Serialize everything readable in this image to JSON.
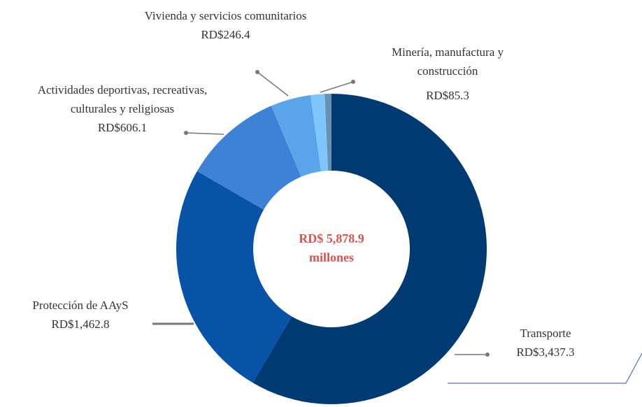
{
  "chart_data": {
    "type": "donut",
    "center_label": [
      "RD$ 5,878.9",
      "millones"
    ],
    "categories": [
      "Transporte",
      "Protección de AAyS",
      "Actividades deportivas, recreativas, culturales y religiosas",
      "Vivienda y servicios comunitarios",
      "Minería, manufactura y construcción",
      null
    ],
    "values": [
      3437.3,
      1462.8,
      606.1,
      246.4,
      85.3,
      41
    ],
    "value_labels": [
      "RD$3,437.3",
      "RD$1,462.8",
      "RD$606.1",
      "RD$246.4",
      "RD$85.3",
      null
    ],
    "colors": [
      "#003a73",
      "#0653a8",
      "#3d82d6",
      "#5aa5ea",
      "#7fc6ff",
      "#6a8fb5"
    ]
  }
}
